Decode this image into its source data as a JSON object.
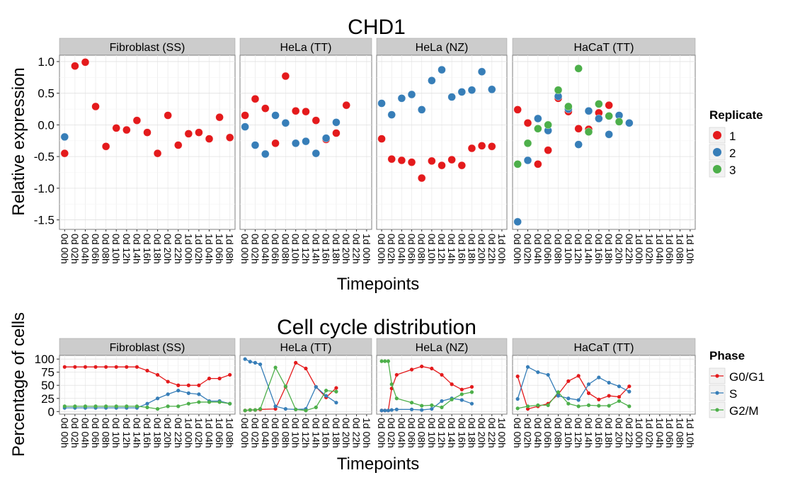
{
  "chart_data": [
    {
      "type": "scatter",
      "title": "CHD1",
      "xlabel": "Timepoints",
      "ylabel": "Relative expression",
      "ylim": [
        -1.65,
        1.1
      ],
      "yticks": [
        1.0,
        0.5,
        0.0,
        -0.5,
        -1.0,
        -1.5
      ],
      "ytick_labels": [
        "1.0",
        "0.5",
        "0.0",
        "-0.5",
        "-1.0",
        "-1.5"
      ],
      "grid": true,
      "legend": {
        "title": "Replicate",
        "position": "right",
        "entries": [
          {
            "name": "1",
            "color": "#E41A1C"
          },
          {
            "name": "2",
            "color": "#377EB8"
          },
          {
            "name": "3",
            "color": "#4DAF4A"
          }
        ]
      },
      "panels": [
        {
          "strip": "Fibroblast (SS)",
          "x": [
            "0d 00h",
            "0d 02h",
            "0d 04h",
            "0d 06h",
            "0d 08h",
            "0d 10h",
            "0d 12h",
            "0d 14h",
            "0d 16h",
            "0d 18h",
            "0d 20h",
            "0d 22h",
            "1d 00h",
            "1d 02h",
            "1d 04h",
            "1d 06h",
            "1d 08h"
          ],
          "series": [
            {
              "name": "1",
              "color": "#E41A1C",
              "values": [
                -0.45,
                0.93,
                0.99,
                0.29,
                -0.34,
                -0.05,
                -0.08,
                0.07,
                -0.12,
                -0.45,
                0.15,
                -0.32,
                -0.14,
                -0.12,
                -0.22,
                0.12,
                -0.2
              ]
            },
            {
              "name": "2",
              "color": "#377EB8",
              "values": [
                -0.19,
                null,
                null,
                null,
                null,
                null,
                null,
                null,
                null,
                null,
                null,
                null,
                null,
                null,
                null,
                null,
                null
              ]
            }
          ]
        },
        {
          "strip": "HeLa (TT)",
          "x": [
            "0d 00h",
            "0d 02h",
            "0d 04h",
            "0d 06h",
            "0d 08h",
            "0d 10h",
            "0d 12h",
            "0d 14h",
            "0d 16h",
            "0d 18h",
            "0d 20h",
            "0d 22h",
            "1d 00h"
          ],
          "series": [
            {
              "name": "1",
              "color": "#E41A1C",
              "values": [
                0.15,
                0.41,
                0.26,
                -0.29,
                0.77,
                0.22,
                0.21,
                0.07,
                -0.23,
                -0.13,
                0.31,
                null,
                null
              ]
            },
            {
              "name": "2",
              "color": "#377EB8",
              "values": [
                -0.03,
                -0.32,
                -0.46,
                0.15,
                0.03,
                -0.29,
                -0.26,
                -0.45,
                -0.21,
                0.04,
                null,
                null,
                null
              ]
            }
          ],
          "note_positions": [
            [
              0,
              0.15,
              1
            ],
            [
              0.5,
              0.41,
              1
            ],
            [
              1,
              0.26,
              1
            ],
            [
              1.5,
              -0.29,
              1
            ],
            [
              3,
              0.77,
              1
            ],
            [
              4,
              0.22,
              1
            ],
            [
              5,
              0.21,
              1
            ],
            [
              6,
              0.07,
              1
            ],
            [
              7,
              -0.23,
              1
            ],
            [
              8,
              -0.13,
              1
            ],
            [
              10,
              0.31,
              1
            ],
            [
              0,
              -0.03,
              2
            ],
            [
              0.5,
              -0.32,
              2
            ],
            [
              1.5,
              -0.46,
              2
            ],
            [
              3,
              0.15,
              2
            ],
            [
              4,
              0.03,
              2
            ],
            [
              5,
              -0.29,
              2
            ],
            [
              6,
              -0.26,
              2
            ],
            [
              7,
              -0.45,
              2
            ],
            [
              8,
              -0.21,
              2
            ],
            [
              10,
              0.04,
              2
            ]
          ]
        },
        {
          "strip": "HeLa (NZ)",
          "x": [
            "0d 00h",
            "0d 02h",
            "0d 04h",
            "0d 06h",
            "0d 08h",
            "0d 10h",
            "0d 12h",
            "0d 14h",
            "0d 16h",
            "0d 18h",
            "0d 20h",
            "0d 22h",
            "1d 00h"
          ],
          "series": [
            {
              "name": "1",
              "color": "#E41A1C",
              "values": [
                -0.22,
                -0.54,
                -0.56,
                -0.59,
                -0.84,
                -0.57,
                -0.64,
                -0.55,
                -0.64,
                -0.37,
                -0.33,
                -0.34
              ]
            },
            {
              "name": "2",
              "color": "#377EB8",
              "values": [
                0.34,
                0.16,
                0.42,
                0.48,
                0.24,
                0.7,
                0.87,
                0.44,
                0.52,
                0.55,
                0.84,
                0.56
              ]
            }
          ]
        },
        {
          "strip": "HaCaT (TT)",
          "x": [
            "0d 00h",
            "0d 02h",
            "0d 04h",
            "0d 06h",
            "0d 08h",
            "0d 10h",
            "0d 12h",
            "0d 14h",
            "0d 16h",
            "0d 18h",
            "0d 20h",
            "0d 22h",
            "1d 00h",
            "1d 02h",
            "1d 04h",
            "1d 06h",
            "1d 08h",
            "1d 10h"
          ],
          "series": [
            {
              "name": "1",
              "color": "#E41A1C",
              "values": [
                0.24,
                0.03,
                -0.62,
                -0.4,
                0.42,
                0.21,
                -0.06,
                -0.07,
                0.19,
                0.31
              ]
            },
            {
              "name": "2",
              "color": "#377EB8",
              "values": [
                -1.53,
                -0.56,
                0.1,
                -0.09,
                0.45,
                0.25,
                -0.31,
                0.22,
                0.1,
                -0.15,
                0.15,
                0.03
              ]
            },
            {
              "name": "3",
              "color": "#4DAF4A",
              "values": [
                -0.62,
                -0.29,
                -0.06,
                0.0,
                0.55,
                0.29,
                0.89,
                -0.11,
                0.33,
                0.14,
                0.05
              ]
            }
          ]
        }
      ]
    },
    {
      "type": "line",
      "title": "Cell cycle distribution",
      "xlabel": "Timepoints",
      "ylabel": "Percentage of cells",
      "ylim": [
        -5,
        107
      ],
      "yticks": [
        100,
        75,
        50,
        25,
        0
      ],
      "ytick_labels": [
        "100",
        "75",
        "50",
        "25",
        "0"
      ],
      "grid": true,
      "legend": {
        "title": "Phase",
        "position": "right",
        "entries": [
          {
            "name": "G0/G1",
            "color": "#E41A1C"
          },
          {
            "name": "S",
            "color": "#377EB8"
          },
          {
            "name": "G2/M",
            "color": "#4DAF4A"
          }
        ]
      },
      "panels": [
        {
          "strip": "Fibroblast (SS)",
          "x": [
            "0d 00h",
            "0d 02h",
            "0d 04h",
            "0d 06h",
            "0d 08h",
            "0d 10h",
            "0d 12h",
            "0d 14h",
            "0d 16h",
            "0d 18h",
            "0d 20h",
            "0d 22h",
            "1d 00h",
            "1d 02h",
            "1d 04h",
            "1d 06h",
            "1d 08h"
          ],
          "series": [
            {
              "name": "G0/G1",
              "color": "#E41A1C",
              "values": [
                85,
                85,
                85,
                85,
                85,
                85,
                85,
                85,
                78,
                70,
                57,
                50,
                50,
                50,
                63,
                63,
                70
              ]
            },
            {
              "name": "S",
              "color": "#377EB8",
              "values": [
                7,
                7,
                7,
                7,
                7,
                7,
                7,
                7,
                15,
                25,
                33,
                40,
                35,
                33,
                20,
                20,
                15
              ]
            },
            {
              "name": "G2/M",
              "color": "#4DAF4A",
              "values": [
                10,
                10,
                10,
                10,
                10,
                10,
                10,
                10,
                8,
                5,
                10,
                10,
                15,
                18,
                18,
                18,
                15
              ]
            }
          ]
        },
        {
          "strip": "HeLa (TT)",
          "x": [
            "0d 00h",
            "0d 02h",
            "0d 04h",
            "0d 06h",
            "0d 08h",
            "0d 10h",
            "0d 12h",
            "0d 14h",
            "0d 16h",
            "0d 18h",
            "0d 20h",
            "0d 22h",
            "1d 00h"
          ],
          "series": [
            {
              "name": "G0/G1",
              "color": "#E41A1C",
              "values": [
                2,
                3,
                3,
                4,
                5,
                47,
                93,
                82,
                47,
                27,
                45
              ]
            },
            {
              "name": "S",
              "color": "#377EB8",
              "values": [
                100,
                95,
                93,
                90,
                10,
                5,
                4,
                5,
                47,
                30,
                17
              ]
            },
            {
              "name": "G2/M",
              "color": "#4DAF4A",
              "values": [
                2,
                3,
                3,
                5,
                84,
                48,
                4,
                2,
                8,
                40,
                38
              ]
            }
          ],
          "x_index": [
            0,
            0.5,
            1,
            1.5,
            3,
            4,
            5,
            6,
            7,
            8,
            9
          ]
        },
        {
          "strip": "HeLa (NZ)",
          "x": [
            "0d 00h",
            "0d 02h",
            "0d 04h",
            "0d 06h",
            "0d 08h",
            "0d 10h",
            "0d 12h",
            "0d 14h",
            "0d 16h",
            "0d 18h",
            "0d 20h",
            "0d 22h",
            "1d 00h"
          ],
          "series": [
            {
              "name": "G0/G1",
              "color": "#E41A1C",
              "values": [
                2,
                2,
                2,
                44,
                70,
                80,
                86,
                82,
                70,
                52,
                42,
                47
              ]
            },
            {
              "name": "S",
              "color": "#377EB8",
              "values": [
                2,
                2,
                2,
                3,
                4,
                4,
                3,
                5,
                20,
                25,
                22,
                15
              ]
            },
            {
              "name": "G2/M",
              "color": "#4DAF4A",
              "values": [
                96,
                96,
                96,
                52,
                25,
                17,
                11,
                12,
                8,
                23,
                33,
                37
              ]
            }
          ],
          "x_index": [
            0,
            0.33,
            0.66,
            1,
            1.5,
            3,
            4,
            5,
            6,
            7,
            8,
            9
          ]
        },
        {
          "strip": "HaCaT (TT)",
          "x": [
            "0d 00h",
            "0d 02h",
            "0d 04h",
            "0d 06h",
            "0d 08h",
            "0d 10h",
            "0d 12h",
            "0d 14h",
            "0d 16h",
            "0d 18h",
            "0d 20h",
            "0d 22h",
            "1d 00h",
            "1d 02h",
            "1d 04h",
            "1d 06h",
            "1d 08h",
            "1d 10h"
          ],
          "series": [
            {
              "name": "G0/G1",
              "color": "#E41A1C",
              "values": [
                67,
                5,
                10,
                15,
                33,
                58,
                68,
                35,
                23,
                30,
                28,
                48
              ]
            },
            {
              "name": "S",
              "color": "#377EB8",
              "values": [
                24,
                85,
                75,
                70,
                30,
                25,
                22,
                52,
                65,
                55,
                48,
                38
              ]
            },
            {
              "name": "G2/M",
              "color": "#4DAF4A",
              "values": [
                6,
                10,
                12,
                12,
                37,
                15,
                10,
                12,
                11,
                11,
                20,
                10
              ]
            }
          ]
        }
      ]
    }
  ]
}
